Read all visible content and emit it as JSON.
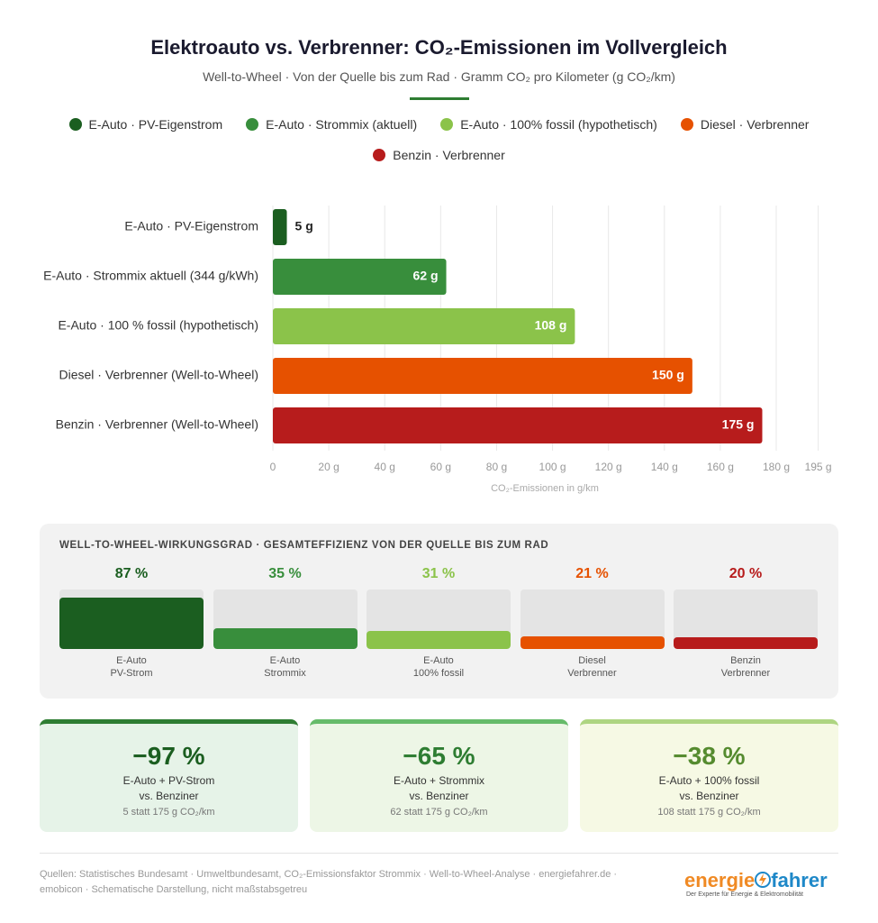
{
  "header": {
    "title": "Elektroauto vs. Verbrenner: CO₂-Emissionen im Vollvergleich",
    "subtitle": "Well-to-Wheel · Von der Quelle bis zum Rad · Gramm CO₂ pro Kilometer (g CO₂/km)"
  },
  "chart_data": [
    {
      "type": "hbar",
      "legend": [
        {
          "name": "E-Auto · PV-Eigenstrom",
          "color": "#1b5e20"
        },
        {
          "name": "E-Auto · Strommix (aktuell)",
          "color": "#388e3c"
        },
        {
          "name": "E-Auto · 100% fossil (hypothetisch)",
          "color": "#8bc34a"
        },
        {
          "name": "Diesel · Verbrenner",
          "color": "#e65100"
        },
        {
          "name": "Benzin · Verbrenner",
          "color": "#b71c1c"
        }
      ],
      "categories": [
        "E-Auto · PV-Eigenstrom",
        "E-Auto · Strommix aktuell (344 g/kWh)",
        "E-Auto · 100 % fossil (hypothetisch)",
        "Diesel · Verbrenner (Well-to-Wheel)",
        "Benzin · Verbrenner (Well-to-Wheel)"
      ],
      "values": [
        5,
        62,
        108,
        150,
        175
      ],
      "value_labels": [
        "5 g",
        "62 g",
        "108 g",
        "150 g",
        "175 g"
      ],
      "colors": [
        "#1b5e20",
        "#388e3c",
        "#8bc34a",
        "#e65100",
        "#b71c1c"
      ],
      "xlim": [
        0,
        195
      ],
      "xticks": [
        {
          "value": 0,
          "label": "0"
        },
        {
          "value": 20,
          "label": "20 g"
        },
        {
          "value": 40,
          "label": "40 g"
        },
        {
          "value": 60,
          "label": "60 g"
        },
        {
          "value": 80,
          "label": "80 g"
        },
        {
          "value": 100,
          "label": "100 g"
        },
        {
          "value": 120,
          "label": "120 g"
        },
        {
          "value": 140,
          "label": "140 g"
        },
        {
          "value": 160,
          "label": "160 g"
        },
        {
          "value": 180,
          "label": "180 g"
        },
        {
          "value": 195,
          "label": "195 g"
        }
      ],
      "x_label": "CO₂-Emissionen in g/km",
      "grid": true
    },
    {
      "type": "bar",
      "title": "WELL-TO-WHEEL-WIRKUNGSGRAD · GESAMTEFFIZIENZ VON DER QUELLE BIS ZUM RAD",
      "categories": [
        "E-Auto\nPV-Strom",
        "E-Auto\nStrommix",
        "E-Auto\n100% fossil",
        "Diesel\nVerbrenner",
        "Benzin\nVerbrenner"
      ],
      "values": [
        87,
        35,
        31,
        21,
        20
      ],
      "value_labels": [
        "87 %",
        "35 %",
        "31 %",
        "21 %",
        "20 %"
      ],
      "colors": [
        "#1b5e20",
        "#388e3c",
        "#8bc34a",
        "#e65100",
        "#b71c1c"
      ],
      "ylim": [
        0,
        100
      ]
    }
  ],
  "cards": [
    {
      "value": "−97 %",
      "label": "E-Auto + PV-Strom\nvs. Benziner",
      "detail": "5 statt 175 g CO₂/km",
      "color": "#1b5e20",
      "border": "#2e7d32",
      "background": "#e6f3e8"
    },
    {
      "value": "−65 %",
      "label": "E-Auto + Strommix\nvs. Benziner",
      "detail": "62 statt 175 g CO₂/km",
      "color": "#2e7d32",
      "border": "#66bb6a",
      "background": "#edf6e6"
    },
    {
      "value": "−38 %",
      "label": "E-Auto + 100% fossil\nvs. Benziner",
      "detail": "108 statt 175 g CO₂/km",
      "color": "#558b2f",
      "border": "#aed581",
      "background": "#f6f9e4"
    }
  ],
  "footer": {
    "sources": "Quellen: Statistisches Bundesamt · Umweltbundesamt, CO₂-Emissionsfaktor Strommix · Well-to-Wheel-Analyse · energiefahrer.de · emobicon · Schematische Darstellung, nicht maßstabsgetreu",
    "logo_part1": "energie",
    "logo_part2": "fahrer",
    "tagline": "Der Experte für Energie & Elektromobilität"
  }
}
